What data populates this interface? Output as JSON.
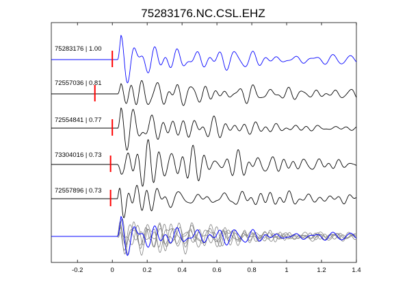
{
  "chart_data": {
    "type": "line",
    "title": "75283176.NC.CSL.EHZ",
    "xlabel": "",
    "ylabel": "",
    "xlim": [
      -0.35,
      1.4
    ],
    "xticks": [
      -0.2,
      0,
      0.2,
      0.4,
      0.6,
      0.8,
      1,
      1.2,
      1.4
    ],
    "xtick_labels": [
      "-0.2",
      "0",
      "0.2",
      "0.4",
      "0.6",
      "0.8",
      "1",
      "1.2",
      "1.4"
    ],
    "grid": false,
    "colors": {
      "master": "#0000ff",
      "trace": "#000000",
      "stack": "#808080",
      "pick": "#ff0000"
    },
    "traces": [
      {
        "label": "75283176 | 1.00",
        "pick_time": 0.0,
        "master": true
      },
      {
        "label": "72557036 | 0.81",
        "pick_time": -0.1,
        "master": false
      },
      {
        "label": "72554841 | 0.77",
        "pick_time": 0.0,
        "master": false
      },
      {
        "label": "73304016 | 0.73",
        "pick_time": -0.01,
        "master": false
      },
      {
        "label": "72557896 | 0.73",
        "pick_time": -0.01,
        "master": false
      }
    ],
    "overlay": {
      "description_visible": false
    }
  }
}
